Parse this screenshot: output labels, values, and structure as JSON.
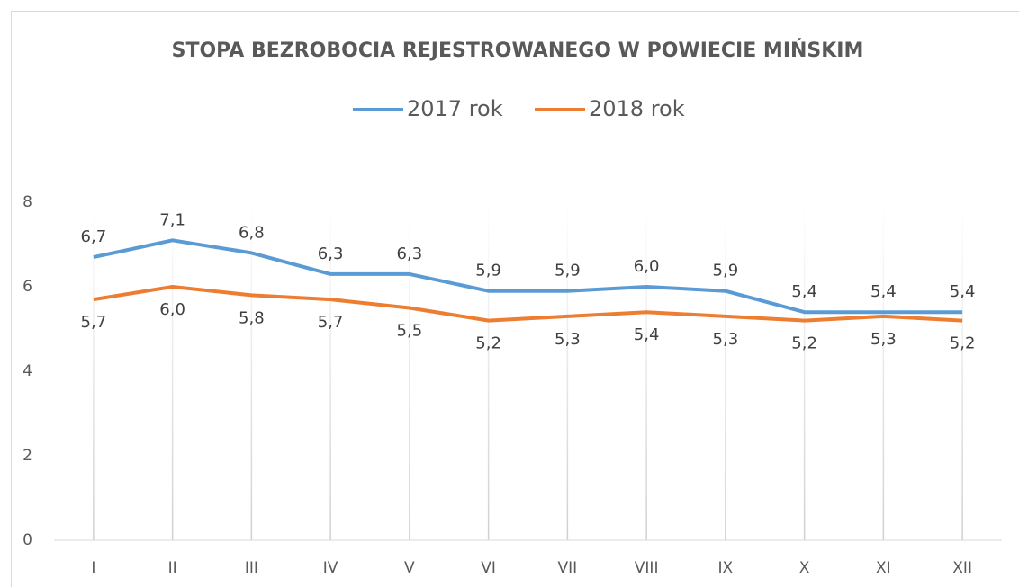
{
  "chart_data": {
    "type": "line",
    "title": "STOPA BEZROBOCIA REJESTROWANEGO W POWIECIE MIŃSKIM",
    "categories": [
      "I",
      "II",
      "III",
      "IV",
      "V",
      "VI",
      "VII",
      "VIII",
      "IX",
      "X",
      "XI",
      "XII"
    ],
    "series": [
      {
        "name": "2017 rok",
        "color": "#5b9bd5",
        "values": [
          6.7,
          7.1,
          6.8,
          6.3,
          6.3,
          5.9,
          5.9,
          6.0,
          5.9,
          5.4,
          5.4,
          5.4
        ],
        "value_labels": [
          "6,7",
          "7,1",
          "6,8",
          "6,3",
          "6,3",
          "5,9",
          "5,9",
          "6,0",
          "5,9",
          "5,4",
          "5,4",
          "5,4"
        ]
      },
      {
        "name": "2018 rok",
        "color": "#ed7d31",
        "values": [
          5.7,
          6.0,
          5.8,
          5.7,
          5.5,
          5.2,
          5.3,
          5.4,
          5.3,
          5.2,
          5.3,
          5.2
        ],
        "value_labels": [
          "5,7",
          "6,0",
          "5,8",
          "5,7",
          "5,5",
          "5,2",
          "5,3",
          "5,4",
          "5,3",
          "5,2",
          "5,3",
          "5,2"
        ]
      }
    ],
    "ylim": [
      0,
      8
    ],
    "yticks": [
      0,
      2,
      4,
      6,
      8
    ],
    "legend": "top"
  }
}
